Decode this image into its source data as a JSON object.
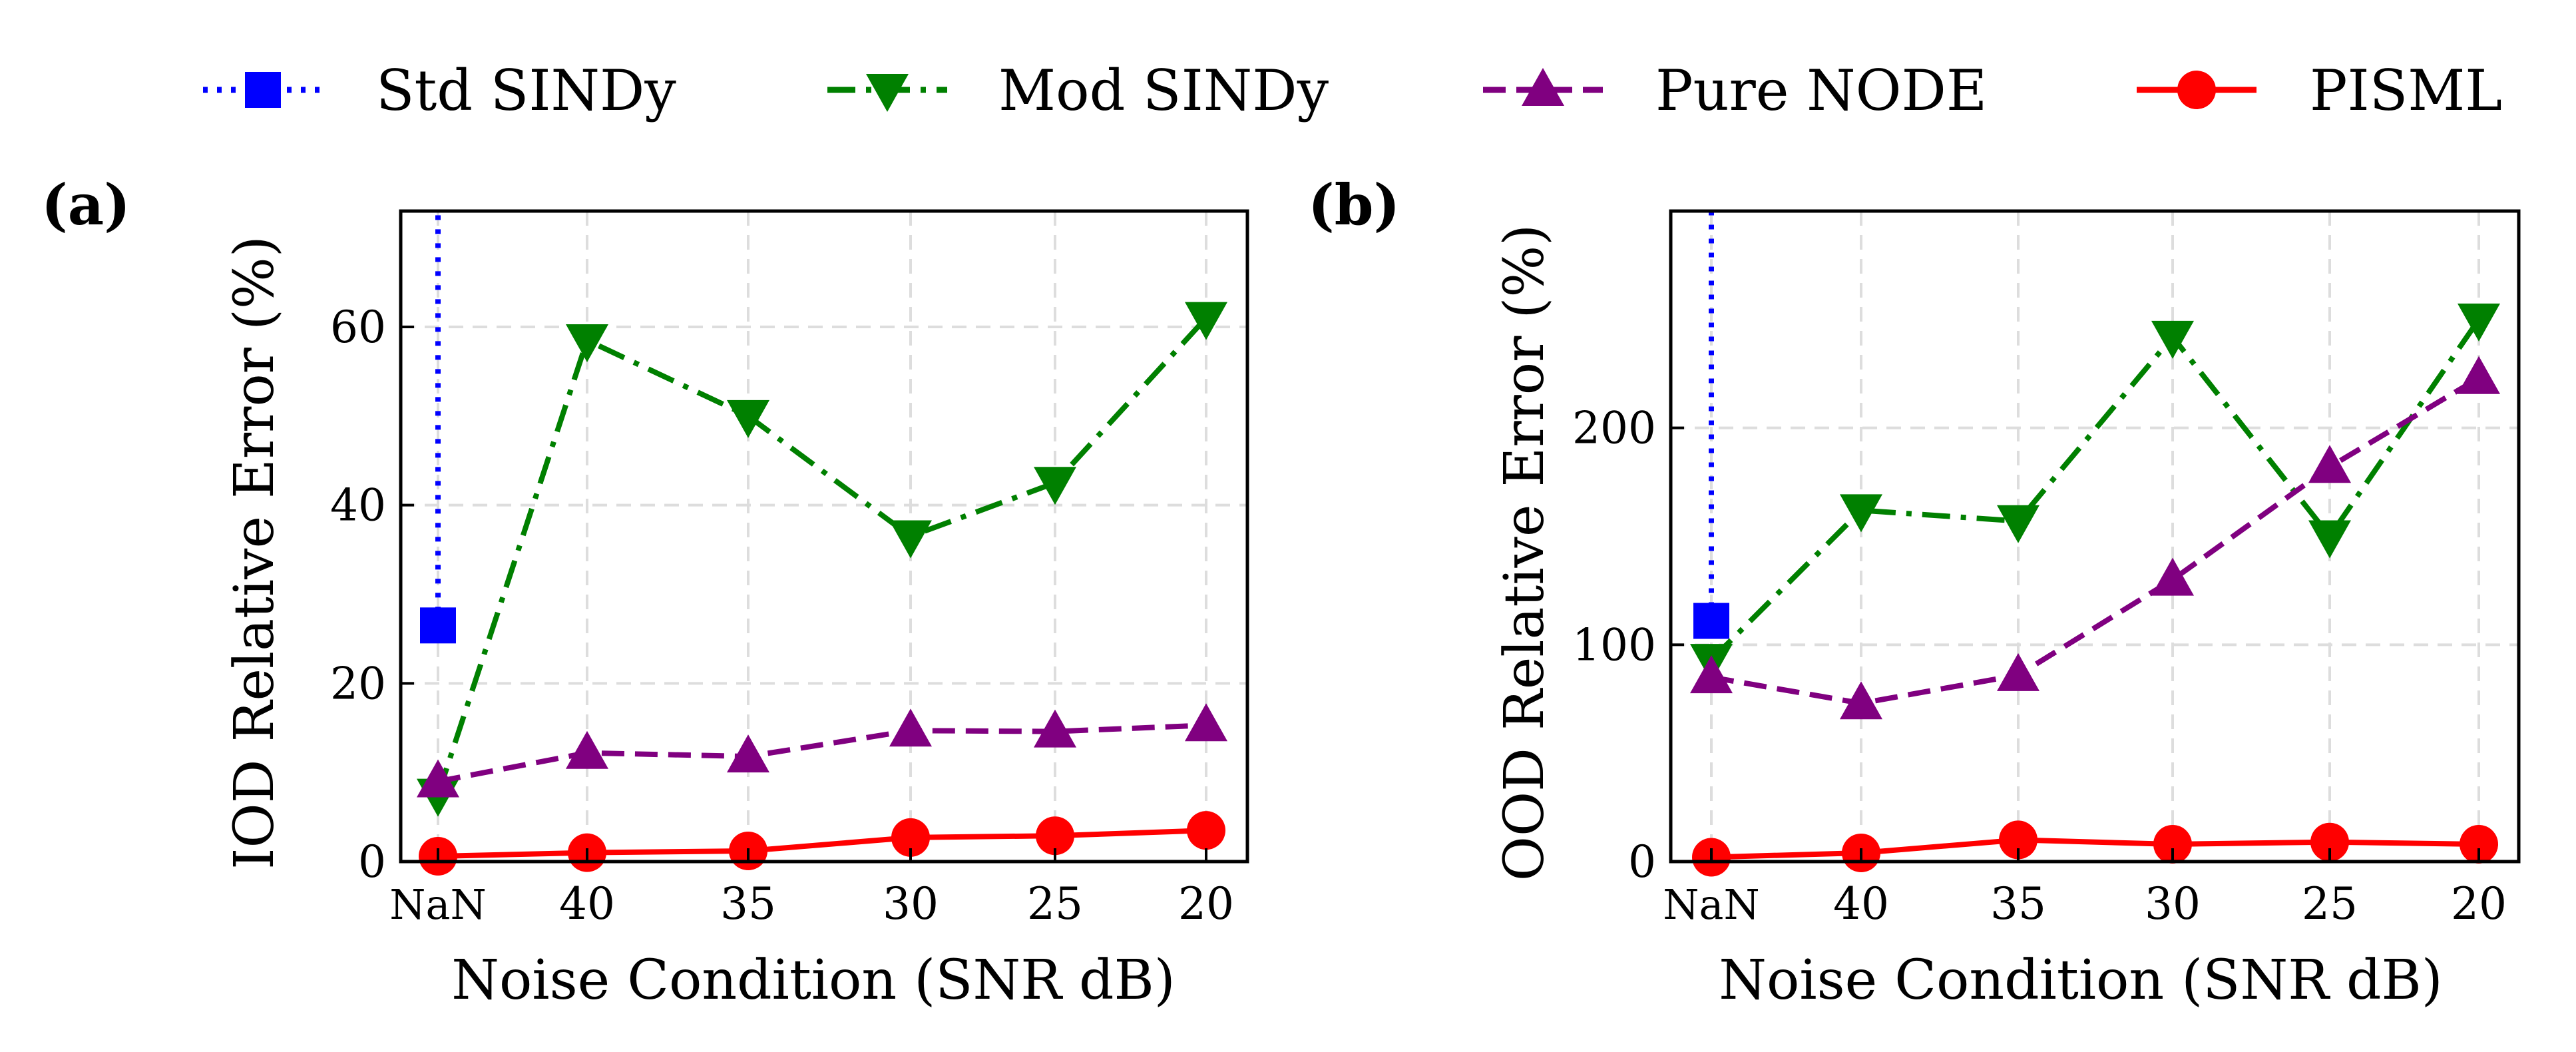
{
  "legend": [
    {
      "name": "Std SINDy",
      "color": "#0000ff",
      "dash": "dotted",
      "marker": "square"
    },
    {
      "name": "Mod SINDy",
      "color": "#008000",
      "dash": "dashdot",
      "marker": "triangle-down"
    },
    {
      "name": "Pure NODE",
      "color": "#800080",
      "dash": "dashed",
      "marker": "triangle-up"
    },
    {
      "name": "PISML",
      "color": "#ff0000",
      "dash": "solid",
      "marker": "circle"
    }
  ],
  "chart_data": [
    {
      "type": "line",
      "panel_label": "(a)",
      "xlabel": "Noise Condition (SNR dB)",
      "ylabel": "IOD Relative Error (%)",
      "categories": [
        "NaN",
        "40",
        "35",
        "30",
        "25",
        "20"
      ],
      "ylim": [
        0,
        73
      ],
      "yticks": [
        0,
        20,
        40,
        60
      ],
      "ytick_labels": [
        "0",
        "20",
        "40",
        "60"
      ],
      "grid": true,
      "series": [
        {
          "name": "Std SINDy",
          "values": [
            26.5,
            null,
            null,
            null,
            null,
            null
          ],
          "vertical_line_to_top": true
        },
        {
          "name": "Mod SINDy",
          "values": [
            7.5,
            58.5,
            50,
            36.5,
            42.5,
            61
          ]
        },
        {
          "name": "Pure NODE",
          "values": [
            9,
            12.2,
            11.8,
            14.7,
            14.6,
            15.3
          ]
        },
        {
          "name": "PISML",
          "values": [
            0.6,
            1,
            1.2,
            2.7,
            2.9,
            3.5
          ]
        }
      ]
    },
    {
      "type": "line",
      "panel_label": "(b)",
      "xlabel": "Noise Condition (SNR dB)",
      "ylabel": "OOD Relative Error (%)",
      "categories": [
        "NaN",
        "40",
        "35",
        "30",
        "25",
        "20"
      ],
      "ylim": [
        0,
        300
      ],
      "yticks": [
        0,
        100,
        200
      ],
      "ytick_labels": [
        "0",
        "100",
        "200"
      ],
      "grid": true,
      "series": [
        {
          "name": "Std SINDy",
          "values": [
            111,
            null,
            null,
            null,
            null,
            null
          ],
          "vertical_line_to_top": true
        },
        {
          "name": "Mod SINDy",
          "values": [
            93,
            162,
            157,
            242,
            150,
            250
          ]
        },
        {
          "name": "Pure NODE",
          "values": [
            85,
            73,
            86,
            130,
            182,
            223
          ]
        },
        {
          "name": "PISML",
          "values": [
            2,
            4,
            10,
            8,
            9,
            8
          ]
        }
      ]
    }
  ]
}
